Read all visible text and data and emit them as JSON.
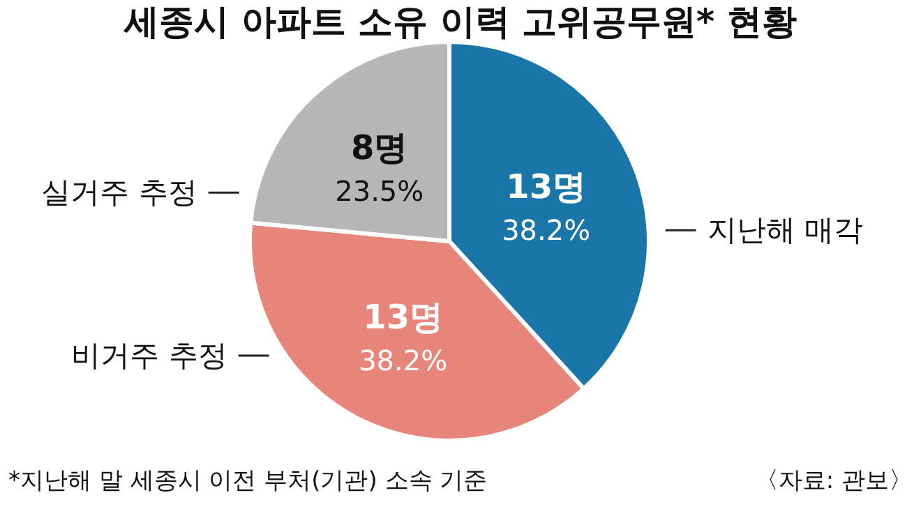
{
  "chart_data": {
    "type": "pie",
    "title": "세종시 아파트 소유 이력 고위공무원* 현황",
    "categories": [
      "지난해 매각",
      "비거주 추정",
      "실거주 추정"
    ],
    "values": [
      13,
      13,
      8
    ],
    "colors": [
      "#1a76a8",
      "#e8857a",
      "#b6b6b6"
    ],
    "value_labels": [
      "13명\n38.2%",
      "13명\n38.2%",
      "8명\n23.5%"
    ],
    "annotations": [
      "*지난해 말 세종시 이전 부처(기관) 소속 기준",
      "〈자료: 관보〉"
    ]
  }
}
